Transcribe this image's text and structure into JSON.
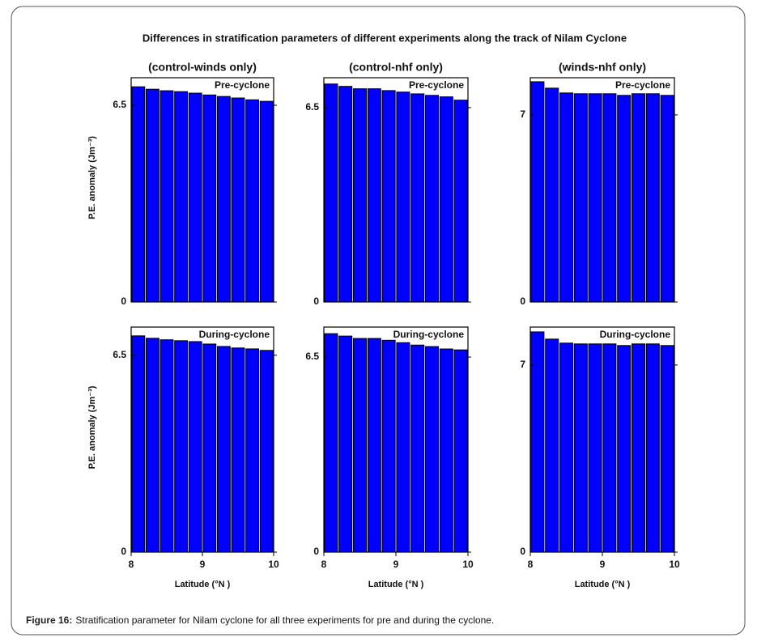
{
  "title": "Differences in stratification parameters of different experiments along the track of Nilam Cyclone",
  "caption": {
    "label": "Figure 16:",
    "text": "Stratification parameter for Nilam cyclone for all three experiments for pre and during the cyclone."
  },
  "chart_data": [
    {
      "type": "bar",
      "title": "(control-winds only)",
      "annotation": "Pre-cyclone",
      "ylabel": "P.E. anomaly (Jm⁻³)",
      "color": "#0000ff",
      "x": [
        8.1,
        8.3,
        8.5,
        8.7,
        8.9,
        9.1,
        9.3,
        9.5,
        9.7,
        9.9
      ],
      "values": [
        7.11,
        7.03,
        6.98,
        6.95,
        6.9,
        6.84,
        6.79,
        6.74,
        6.68,
        6.63
      ],
      "xlim": [
        8,
        10
      ],
      "ylim": [
        0,
        7.41
      ],
      "yticks": [
        0,
        6.5
      ]
    },
    {
      "type": "bar",
      "title": "(control-nhf only)",
      "annotation": "Pre-cyclone",
      "color": "#0000ff",
      "x": [
        8.1,
        8.3,
        8.5,
        8.7,
        8.9,
        9.1,
        9.3,
        9.5,
        9.7,
        9.9
      ],
      "values": [
        7.29,
        7.21,
        7.13,
        7.13,
        7.07,
        7.02,
        6.96,
        6.91,
        6.86,
        6.75
      ],
      "xlim": [
        8,
        10
      ],
      "ylim": [
        0,
        7.5
      ],
      "yticks": [
        0,
        6.5
      ]
    },
    {
      "type": "bar",
      "title": "(winds-nhf only)",
      "annotation": "Pre-cyclone",
      "color": "#0000ff",
      "x": [
        8.1,
        8.3,
        8.5,
        8.7,
        8.9,
        9.1,
        9.3,
        9.5,
        9.7,
        9.9
      ],
      "values": [
        8.24,
        8.0,
        7.82,
        7.79,
        7.79,
        7.79,
        7.73,
        7.79,
        7.79,
        7.73
      ],
      "xlim": [
        8,
        10
      ],
      "ylim": [
        0,
        8.39
      ],
      "yticks": [
        0,
        7
      ]
    },
    {
      "type": "bar",
      "annotation": "During-cyclone",
      "ylabel": "P.E. anomaly (Jm⁻³)",
      "xlabel": "Latitude (°N )",
      "color": "#0000ff",
      "x": [
        8.1,
        8.3,
        8.5,
        8.7,
        8.9,
        9.1,
        9.3,
        9.5,
        9.7,
        9.9
      ],
      "values": [
        7.14,
        7.06,
        7.01,
        6.98,
        6.95,
        6.87,
        6.79,
        6.74,
        6.71,
        6.66
      ],
      "xlim": [
        8,
        10
      ],
      "xticks": [
        8,
        9,
        10
      ],
      "ylim": [
        0,
        7.43
      ],
      "yticks": [
        0,
        6.5
      ]
    },
    {
      "type": "bar",
      "annotation": "During-cyclone",
      "xlabel": "Latitude (°N )",
      "color": "#0000ff",
      "x": [
        8.1,
        8.3,
        8.5,
        8.7,
        8.9,
        9.1,
        9.3,
        9.5,
        9.7,
        9.9
      ],
      "values": [
        7.28,
        7.2,
        7.12,
        7.12,
        7.06,
        6.98,
        6.9,
        6.85,
        6.77,
        6.74
      ],
      "xlim": [
        8,
        10
      ],
      "xticks": [
        8,
        9,
        10
      ],
      "ylim": [
        0,
        7.5
      ],
      "yticks": [
        0,
        6.5
      ]
    },
    {
      "type": "bar",
      "annotation": "During-cyclone",
      "xlabel": "Latitude (°N )",
      "color": "#0000ff",
      "x": [
        8.1,
        8.3,
        8.5,
        8.7,
        8.9,
        9.1,
        9.3,
        9.5,
        9.7,
        9.9
      ],
      "values": [
        8.24,
        7.97,
        7.82,
        7.79,
        7.79,
        7.79,
        7.73,
        7.79,
        7.79,
        7.73
      ],
      "xlim": [
        8,
        10
      ],
      "xticks": [
        8,
        9,
        10
      ],
      "ylim": [
        0,
        8.42
      ],
      "yticks": [
        0,
        7
      ]
    }
  ]
}
